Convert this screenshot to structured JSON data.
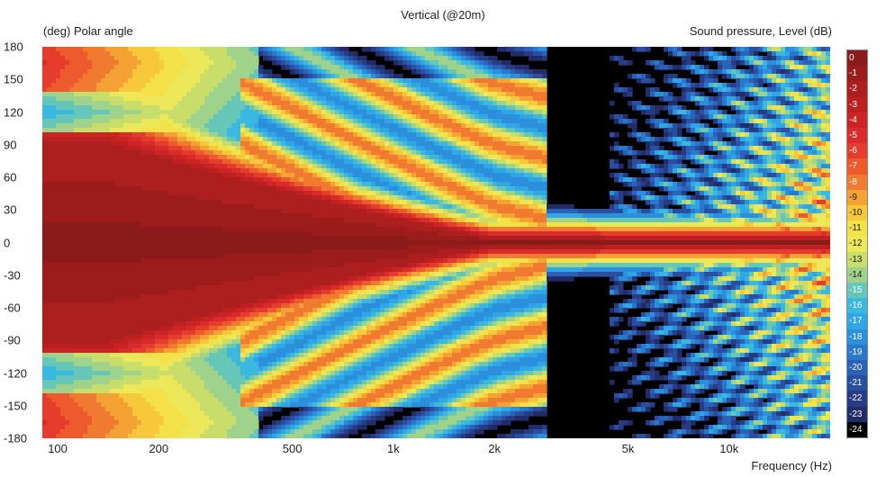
{
  "chart_data": {
    "type": "heatmap",
    "title": "Vertical (@20m)",
    "ylabel": "(deg)  Polar angle",
    "xlabel": "Frequency  (Hz)",
    "colorbar_label": "Sound pressure, Level  (dB)",
    "x_scale": "log",
    "xlim": [
      90,
      20000
    ],
    "ylim": [
      -180,
      180
    ],
    "x_ticks": [
      {
        "value": 100,
        "label": "100"
      },
      {
        "value": 200,
        "label": "200"
      },
      {
        "value": 500,
        "label": "500"
      },
      {
        "value": 1000,
        "label": "1k"
      },
      {
        "value": 2000,
        "label": "2k"
      },
      {
        "value": 5000,
        "label": "5k"
      },
      {
        "value": 10000,
        "label": "10k"
      }
    ],
    "y_ticks": [
      {
        "value": 180,
        "label": "180"
      },
      {
        "value": 150,
        "label": "150"
      },
      {
        "value": 120,
        "label": "120"
      },
      {
        "value": 90,
        "label": "90"
      },
      {
        "value": 60,
        "label": "60"
      },
      {
        "value": 30,
        "label": "30"
      },
      {
        "value": 0,
        "label": "0"
      },
      {
        "value": -30,
        "label": "-30"
      },
      {
        "value": -60,
        "label": "-60"
      },
      {
        "value": -90,
        "label": "-90"
      },
      {
        "value": -120,
        "label": "-120"
      },
      {
        "value": -150,
        "label": "-150"
      },
      {
        "value": -180,
        "label": "-180"
      }
    ],
    "colorbar": [
      {
        "label": "0",
        "color": "#8b1a1a"
      },
      {
        "label": "-1",
        "color": "#9c1c1c"
      },
      {
        "label": "-2",
        "color": "#ad1e1e"
      },
      {
        "label": "-3",
        "color": "#bd2020"
      },
      {
        "label": "-4",
        "color": "#cc2424"
      },
      {
        "label": "-5",
        "color": "#d92b2b"
      },
      {
        "label": "-6",
        "color": "#e63c2e"
      },
      {
        "label": "-7",
        "color": "#ec5a2e"
      },
      {
        "label": "-8",
        "color": "#f07b30"
      },
      {
        "label": "-9",
        "color": "#f4a233"
      },
      {
        "label": "-10",
        "color": "#f7c83a"
      },
      {
        "label": "-11",
        "color": "#f3e14a"
      },
      {
        "label": "-12",
        "color": "#ece85a"
      },
      {
        "label": "-13",
        "color": "#c9de6a"
      },
      {
        "label": "-14",
        "color": "#9fd28a"
      },
      {
        "label": "-15",
        "color": "#66c6b8"
      },
      {
        "label": "-16",
        "color": "#3ab8e0"
      },
      {
        "label": "-17",
        "color": "#30a6e6"
      },
      {
        "label": "-18",
        "color": "#2b8fdc"
      },
      {
        "label": "-19",
        "color": "#2a78cc"
      },
      {
        "label": "-20",
        "color": "#2a62b8"
      },
      {
        "label": "-21",
        "color": "#2a4ea0"
      },
      {
        "label": "-22",
        "color": "#283c86"
      },
      {
        "label": "-23",
        "color": "#222c68"
      },
      {
        "label": "-24",
        "color": "#000000"
      }
    ],
    "directivity_description_db_levels": {
      "on_axis_0deg": 0,
      "low_frequency_100Hz_at_0deg": 0,
      "low_frequency_100Hz_at_120deg": -16,
      "low_frequency_100Hz_at_180deg": -7,
      "high_frequency_above_2k_off_axis": -24
    }
  }
}
